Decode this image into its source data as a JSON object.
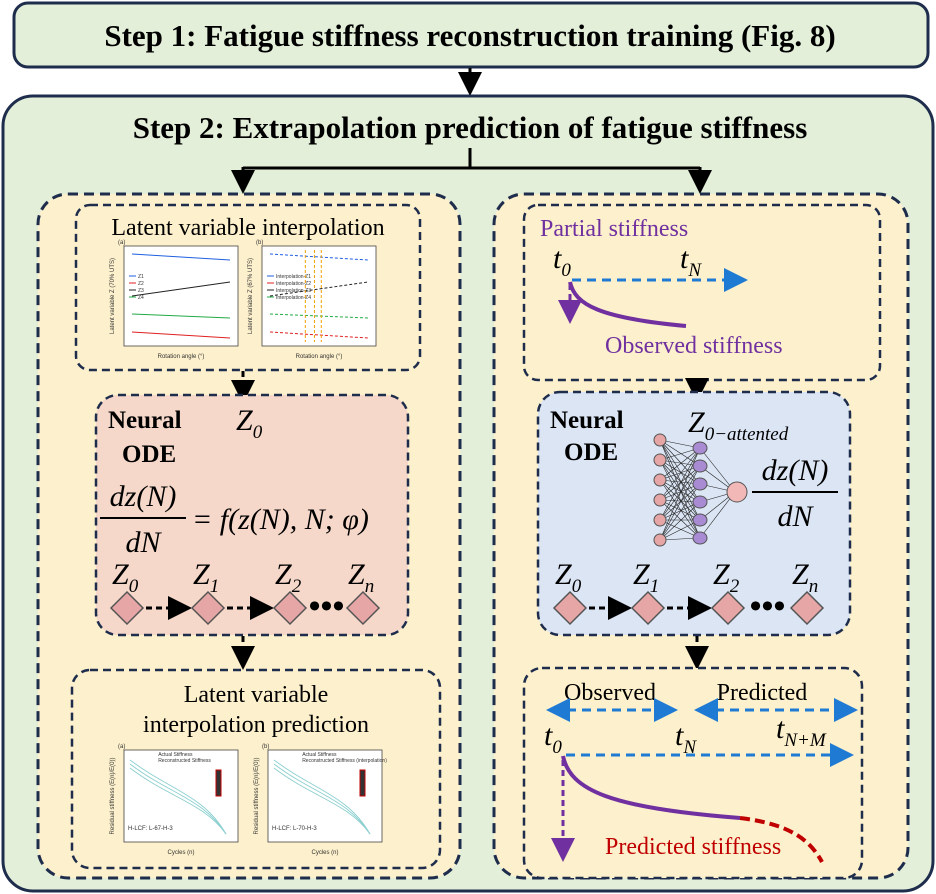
{
  "step1": {
    "title": "Step 1: Fatigue stiffness reconstruction training (Fig. 8)"
  },
  "step2": {
    "title": "Step 2: Extrapolation prediction of fatigue stiffness",
    "left": {
      "interpolation": {
        "title": "Latent variable interpolation",
        "chart_a": {
          "panel": "(a)",
          "y_label": "Latent variable Z (70% UTS)",
          "x_label": "Rotation angle (°)",
          "legend": [
            "Z1",
            "Z2",
            "Z3",
            "Z4"
          ]
        },
        "chart_b": {
          "panel": "(b)",
          "y_label": "Latent variable Z (67% UTS)",
          "x_label": "Rotation angle (°)",
          "legend": [
            "Interpolation-Z1",
            "Interpolation-Z2",
            "Interpolation-Z3",
            "Interpolation-Z4"
          ]
        }
      },
      "neural_ode": {
        "label": [
          "Neural",
          "ODE"
        ],
        "input": {
          "symbol": "Z",
          "sub": "0"
        },
        "equation": {
          "numerator": "dz(N)",
          "denominator": "dN",
          "rhs": "= f(z(N), N; φ)"
        },
        "sequence": [
          {
            "symbol": "Z",
            "sub": "0"
          },
          {
            "symbol": "Z",
            "sub": "1"
          },
          {
            "symbol": "Z",
            "sub": "2"
          },
          {
            "symbol": "Z",
            "sub": "n"
          }
        ]
      },
      "prediction": {
        "title": [
          "Latent variable",
          "interpolation prediction"
        ],
        "chart_a": {
          "panel": "(a)",
          "y_label": "Residual stiffness (E(n)/E(0))",
          "x_label": "Cycles (n)",
          "legend": [
            "Actual Stiffness",
            "Reconstructed Stiffness"
          ],
          "note": "H-LCF: L-67-H-3"
        },
        "chart_b": {
          "panel": "(b)",
          "y_label": "Residual stiffness (E(n)/E(0))",
          "x_label": "Cycles (n)",
          "legend": [
            "Actual Stiffness",
            "Reconstructed Stiffness (interpolation)"
          ],
          "note": "H-LCF: L-70-H-3"
        }
      }
    },
    "right": {
      "partial": {
        "title": "Partial stiffness",
        "t0": {
          "symbol": "t",
          "sub": "0"
        },
        "tN": {
          "symbol": "t",
          "sub": "N"
        },
        "curve_label": "Observed stiffness"
      },
      "neural_ode": {
        "label": [
          "Neural",
          "ODE"
        ],
        "input": {
          "symbol": "Z",
          "sub": "0−attented"
        },
        "output": {
          "numerator": "dz(N)",
          "denominator": "dN"
        },
        "sequence": [
          {
            "symbol": "Z",
            "sub": "0"
          },
          {
            "symbol": "Z",
            "sub": "1"
          },
          {
            "symbol": "Z",
            "sub": "2"
          },
          {
            "symbol": "Z",
            "sub": "n"
          }
        ]
      },
      "prediction": {
        "observed": "Observed",
        "predicted": "Predicted",
        "t0": {
          "symbol": "t",
          "sub": "0"
        },
        "tN": {
          "symbol": "t",
          "sub": "N"
        },
        "tNM": {
          "symbol": "t",
          "sub": "N+M"
        },
        "curve_label": "Predicted stiffness"
      }
    }
  }
}
